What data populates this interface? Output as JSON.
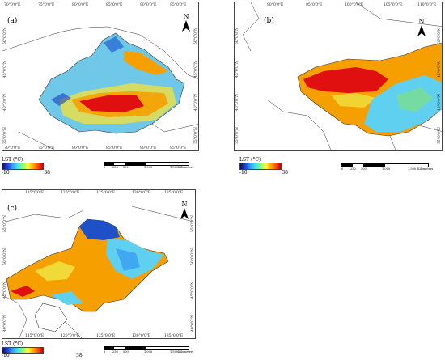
{
  "panels": {
    "a": {
      "label": "(a)",
      "top_ticks": [
        "70°0'0\"E",
        "75°0'0\"E",
        "80°0'0\"E",
        "85°0'0\"E",
        "90°0'0\"E",
        "95°0'0\"E"
      ],
      "bottom_ticks": [
        "70°0'0\"E",
        "75°0'0\"E",
        "80°0'0\"E",
        "85°0'0\"E",
        "90°0'0\"E",
        "95°0'0\"E"
      ],
      "left_ticks": [
        "50°0'0\"N",
        "45°0'0\"N",
        "40°0'0\"N",
        "35°0'0\"N"
      ],
      "right_ticks": [
        "50°0'0\"N",
        "45°0'0\"N",
        "40°0'0\"N",
        "35°0'0\"N"
      ]
    },
    "b": {
      "label": "(b)",
      "top_ticks": [
        "90°0'0\"E",
        "95°0'0\"E",
        "100°0'0\"E",
        "105°0'0\"E",
        "110°0'0\"E"
      ],
      "left_ticks": [
        "50°0'0\"N",
        "45°0'0\"N",
        "40°0'0\"N",
        "35°0'0\"N"
      ],
      "right_ticks": [
        "50°0'0\"N",
        "45°0'0\"N",
        "40°0'0\"N",
        "35°0'0\"N"
      ]
    },
    "c": {
      "label": "(c)",
      "top_ticks": [
        "115°0'0\"E",
        "120°0'0\"E",
        "125°0'0\"E",
        "130°0'0\"E",
        "135°0'0\"E"
      ],
      "bottom_ticks": [
        "115°0'0\"E",
        "120°0'0\"E",
        "125°0'0\"E",
        "130°0'0\"E",
        "135°0'0\"E"
      ],
      "left_ticks": [
        "55°0'0\"N",
        "50°0'0\"N",
        "45°0'0\"N",
        "40°0'0\"N"
      ],
      "right_ticks": [
        "55°0'0\"N",
        "50°0'0\"N",
        "45°0'0\"N",
        "40°0'0\"N"
      ]
    }
  },
  "north_label": "N",
  "legend": {
    "title": "LST (°C)",
    "min": "-10",
    "max": "38"
  },
  "scalebar": {
    "marks": [
      "0",
      "250",
      "500",
      "1,000",
      "1,500"
    ],
    "unit": "Kilometers"
  },
  "colors": {
    "hot": "#e01010",
    "warm": "#f5a000",
    "mild": "#f0e040",
    "cool": "#60d0f0",
    "cold": "#1040c0",
    "border": "#000000"
  }
}
